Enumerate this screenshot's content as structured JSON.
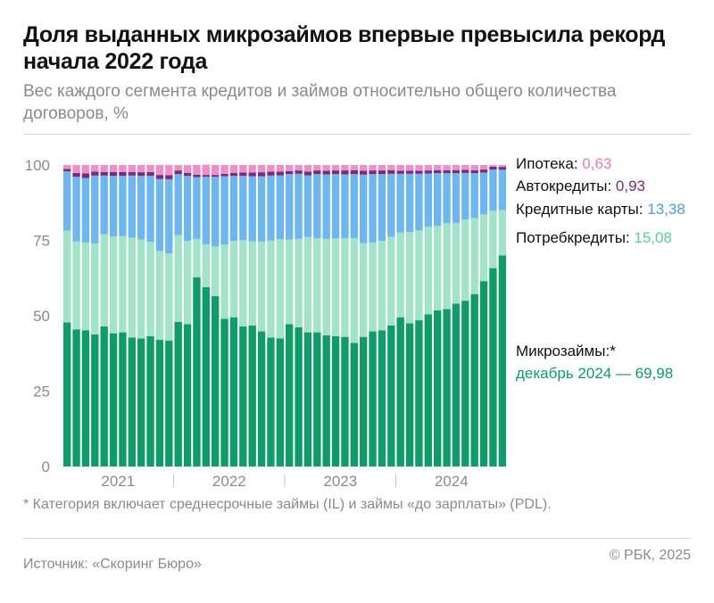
{
  "header": {
    "title": "Доля выданных микрозаймов впервые превысила рекорд начала 2022 года",
    "subtitle": "Вес каждого сегмента кредитов и займов относительно общего количества договоров, %"
  },
  "footer": {
    "footnote": "* Категория включает среднесрочные займы (IL) и займы «до зарплаты» (PDL).",
    "source": "Источник: «Скоринг Бюро»",
    "copyright": "© РБК, 2025"
  },
  "chart_data": {
    "type": "bar",
    "stacked": true,
    "ylim": [
      0,
      100
    ],
    "yticks": [
      0,
      25,
      50,
      75,
      100
    ],
    "year_labels": [
      "2021",
      "2022",
      "2023",
      "2024"
    ],
    "categories": [
      "2021-01",
      "2021-02",
      "2021-03",
      "2021-04",
      "2021-05",
      "2021-06",
      "2021-07",
      "2021-08",
      "2021-09",
      "2021-10",
      "2021-11",
      "2021-12",
      "2022-01",
      "2022-02",
      "2022-03",
      "2022-04",
      "2022-05",
      "2022-06",
      "2022-07",
      "2022-08",
      "2022-09",
      "2022-10",
      "2022-11",
      "2022-12",
      "2023-01",
      "2023-02",
      "2023-03",
      "2023-04",
      "2023-05",
      "2023-06",
      "2023-07",
      "2023-08",
      "2023-09",
      "2023-10",
      "2023-11",
      "2023-12",
      "2024-01",
      "2024-02",
      "2024-03",
      "2024-04",
      "2024-05",
      "2024-06",
      "2024-07",
      "2024-08",
      "2024-09",
      "2024-10",
      "2024-11",
      "2024-12"
    ],
    "series": [
      {
        "name": "Микрозаймы",
        "color": "#0f9b6a",
        "values": [
          47.8,
          45.5,
          45.2,
          43.8,
          46.5,
          44.2,
          44.5,
          42.8,
          42.5,
          43.2,
          42,
          41.8,
          48,
          47.2,
          62.8,
          59.5,
          56.5,
          49,
          49.5,
          46.5,
          46.8,
          44.8,
          42.8,
          42.5,
          47.2,
          46.2,
          44.5,
          44.5,
          43.5,
          43.2,
          43,
          41,
          43,
          44.8,
          45.2,
          46.8,
          49.5,
          47.5,
          48.5,
          50.5,
          51.8,
          52.2,
          54,
          55,
          57.2,
          61.5,
          65.8,
          69.98
        ]
      },
      {
        "name": "Потребкредиты",
        "color": "#a3e3c9",
        "values": [
          30.4,
          29.1,
          29.1,
          30.2,
          30.5,
          32.1,
          31.9,
          33.1,
          32.8,
          31.3,
          29.5,
          28.9,
          28.7,
          27.6,
          12.7,
          14.2,
          16.5,
          24.6,
          25.3,
          28.6,
          27.9,
          29.8,
          32.1,
          32.9,
          28.1,
          29.3,
          31.6,
          31.2,
          32,
          32.5,
          32.7,
          34.7,
          31.1,
          29.5,
          29.6,
          29.4,
          28.1,
          30.3,
          29.8,
          29,
          28,
          28.5,
          26.8,
          26.9,
          25.2,
          22.1,
          19,
          15.08
        ]
      },
      {
        "name": "Кредитные карты",
        "color": "#6eb6ee",
        "values": [
          19.7,
          21.5,
          21.4,
          22.5,
          19.5,
          20.1,
          20,
          20.6,
          21.1,
          21.9,
          23.9,
          24.6,
          20.3,
          21.6,
          20.5,
          22.4,
          23.1,
          22.7,
          21.6,
          21.3,
          21.6,
          21.7,
          21.6,
          21.2,
          21.7,
          21.6,
          20.5,
          21.3,
          21.4,
          21.3,
          21.2,
          21.3,
          22.7,
          22.7,
          22.2,
          20.9,
          19.5,
          19.3,
          18.8,
          17.7,
          17.5,
          16.6,
          16.5,
          15.5,
          14.9,
          13.9,
          13.7,
          13.38
        ]
      },
      {
        "name": "Автокредиты",
        "color": "#7a2a78",
        "values": [
          0.8,
          1.3,
          1.5,
          1.3,
          1.2,
          1.3,
          1.3,
          1.2,
          1.2,
          1.3,
          1.3,
          1.3,
          1.2,
          1,
          0.8,
          0.6,
          0.6,
          0.8,
          1,
          1.1,
          1.2,
          1.3,
          1.3,
          1.2,
          1,
          1.1,
          1.2,
          1.2,
          1.2,
          1.2,
          1.3,
          1.3,
          1.3,
          1.2,
          1.2,
          1.2,
          1,
          1,
          1,
          1,
          1,
          1,
          1,
          1,
          1,
          1,
          0.9,
          0.93
        ]
      },
      {
        "name": "Ипотека",
        "color": "#ef8fc9",
        "values": [
          1.3,
          2.6,
          2.8,
          2.2,
          2.3,
          2.3,
          2.3,
          2.3,
          2.4,
          2.3,
          3.3,
          3.4,
          1.8,
          2.6,
          3.2,
          3.4,
          3.3,
          2.9,
          2.6,
          2.5,
          2.5,
          2.4,
          2.2,
          2.2,
          2,
          1.8,
          2.2,
          1.8,
          1.9,
          1.8,
          1.8,
          1.7,
          1.9,
          1.8,
          1.8,
          1.7,
          1.9,
          1.9,
          1.9,
          1.8,
          1.7,
          1.7,
          1.7,
          1.6,
          1.7,
          1.5,
          0.6,
          0.63
        ]
      }
    ],
    "legend": [
      {
        "label": "Ипотека:",
        "value": "0,63",
        "color": "#ef8fc9",
        "value_color": "#e27bbd"
      },
      {
        "label": "Автокредиты:",
        "value": "0,93",
        "color": "#7a2a78",
        "value_color": "#7a2a78"
      },
      {
        "label": "Кредитные карты:",
        "value": "13,38",
        "color": "#6eb6ee",
        "value_color": "#4b9fe0"
      },
      {
        "label": "Потребкредиты:",
        "value": "15,08",
        "color": "#a3e3c9",
        "value_color": "#5ec99f"
      },
      {
        "label": "Микрозаймы:*",
        "value": "декабрь 2024 — 69,98",
        "color": "#0f9b6a",
        "value_color": "#0f9b6a"
      }
    ]
  }
}
